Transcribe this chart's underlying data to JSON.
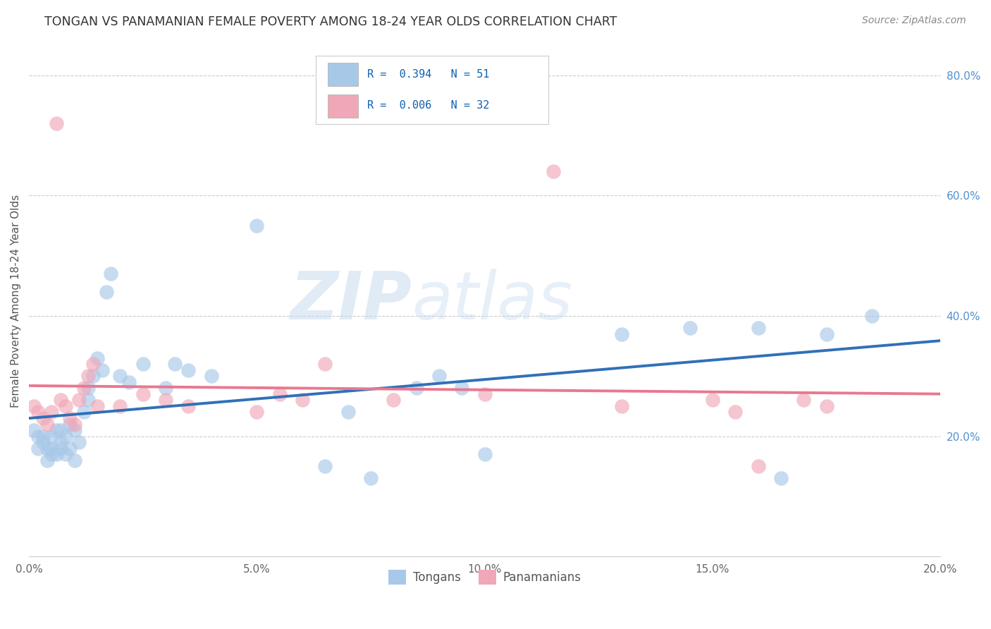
{
  "title": "TONGAN VS PANAMANIAN FEMALE POVERTY AMONG 18-24 YEAR OLDS CORRELATION CHART",
  "source": "Source: ZipAtlas.com",
  "ylabel": "Female Poverty Among 18-24 Year Olds",
  "xlim": [
    0.0,
    0.2
  ],
  "ylim": [
    0.0,
    0.85
  ],
  "xtick_labels": [
    "0.0%",
    "5.0%",
    "10.0%",
    "15.0%",
    "20.0%"
  ],
  "xtick_vals": [
    0.0,
    0.05,
    0.1,
    0.15,
    0.2
  ],
  "ytick_labels_right": [
    "20.0%",
    "40.0%",
    "60.0%",
    "80.0%"
  ],
  "ytick_vals_right": [
    0.2,
    0.4,
    0.6,
    0.8
  ],
  "watermark_zip": "ZIP",
  "watermark_atlas": "atlas",
  "legend_r1": "R =  0.394   N = 51",
  "legend_r2": "R =  0.006   N = 32",
  "tongan_color": "#a8c8e8",
  "panamanian_color": "#f0a8b8",
  "tongan_line_color": "#3070b8",
  "panamanian_line_color": "#e87890",
  "background_color": "#ffffff",
  "grid_color": "#cccccc",
  "tongan_x": [
    0.001,
    0.002,
    0.002,
    0.003,
    0.003,
    0.004,
    0.004,
    0.005,
    0.005,
    0.005,
    0.006,
    0.006,
    0.007,
    0.007,
    0.007,
    0.008,
    0.008,
    0.009,
    0.009,
    0.01,
    0.01,
    0.011,
    0.012,
    0.013,
    0.013,
    0.014,
    0.015,
    0.016,
    0.017,
    0.018,
    0.02,
    0.022,
    0.025,
    0.03,
    0.032,
    0.035,
    0.04,
    0.05,
    0.065,
    0.07,
    0.075,
    0.085,
    0.09,
    0.095,
    0.1,
    0.13,
    0.145,
    0.16,
    0.165,
    0.175,
    0.185
  ],
  "tongan_y": [
    0.21,
    0.2,
    0.18,
    0.2,
    0.19,
    0.18,
    0.16,
    0.18,
    0.17,
    0.2,
    0.21,
    0.17,
    0.19,
    0.21,
    0.18,
    0.17,
    0.2,
    0.22,
    0.18,
    0.21,
    0.16,
    0.19,
    0.24,
    0.26,
    0.28,
    0.3,
    0.33,
    0.31,
    0.44,
    0.47,
    0.3,
    0.29,
    0.32,
    0.28,
    0.32,
    0.31,
    0.3,
    0.55,
    0.15,
    0.24,
    0.13,
    0.28,
    0.3,
    0.28,
    0.17,
    0.37,
    0.38,
    0.38,
    0.13,
    0.37,
    0.4
  ],
  "panamanian_x": [
    0.001,
    0.002,
    0.003,
    0.004,
    0.005,
    0.006,
    0.007,
    0.008,
    0.009,
    0.01,
    0.011,
    0.012,
    0.013,
    0.014,
    0.015,
    0.02,
    0.025,
    0.03,
    0.035,
    0.05,
    0.055,
    0.06,
    0.065,
    0.08,
    0.1,
    0.115,
    0.13,
    0.15,
    0.155,
    0.16,
    0.17,
    0.175
  ],
  "panamanian_y": [
    0.25,
    0.24,
    0.23,
    0.22,
    0.24,
    0.72,
    0.26,
    0.25,
    0.23,
    0.22,
    0.26,
    0.28,
    0.3,
    0.32,
    0.25,
    0.25,
    0.27,
    0.26,
    0.25,
    0.24,
    0.27,
    0.26,
    0.32,
    0.26,
    0.27,
    0.64,
    0.25,
    0.26,
    0.24,
    0.15,
    0.26,
    0.25
  ]
}
